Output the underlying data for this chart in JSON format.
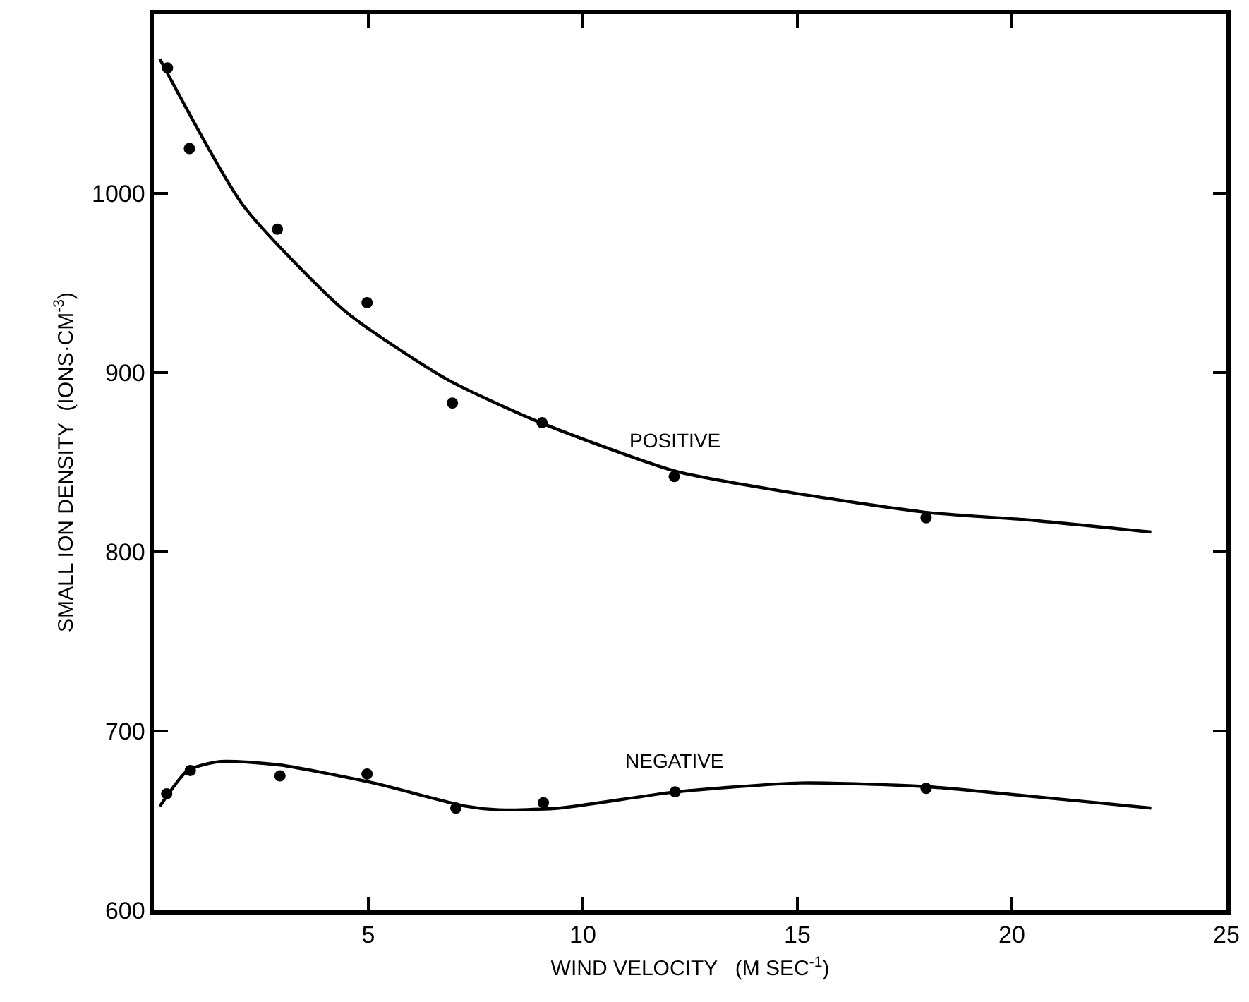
{
  "chart_data": {
    "type": "scatter",
    "xlabel": "WIND VELOCITY   (M SEC$^{-1}$)",
    "ylabel": "SMALL ION DENSITY  (IONS·CM$^{-3}$)",
    "xlim": [
      0,
      25
    ],
    "xticks": [
      5,
      10,
      15,
      20,
      25
    ],
    "ylim": [
      600,
      1100
    ],
    "yticks": [
      600,
      700,
      800,
      900,
      1000
    ],
    "grid": false,
    "marker": "circle",
    "series": [
      {
        "color": "#000000",
        "x": [
          0.32,
          0.83,
          2.88,
          4.97,
          6.96,
          9.05,
          12.13,
          18.0
        ],
        "values": [
          1070,
          1025,
          980,
          939,
          883,
          872,
          842,
          819
        ]
      },
      {
        "color": "#000000",
        "x": [
          0.3,
          0.85,
          2.94,
          4.97,
          7.04,
          9.08,
          12.15,
          18.0
        ],
        "values": [
          665,
          678,
          675,
          676,
          657,
          660,
          666,
          668
        ]
      },
      {
        "type": "line",
        "name": "POSITIVE",
        "color": "#000000",
        "line_style": "solid",
        "marker": "none",
        "x": [
          0.14,
          2.09,
          4.47,
          6.85,
          9.02,
          12.15,
          14.86,
          18.0,
          20.27,
          23.25
        ],
        "values": [
          1075,
          993,
          934,
          896,
          872,
          845,
          833,
          822,
          818,
          811
        ]
      },
      {
        "type": "line",
        "name": "NEGATIVE",
        "color": "#000000",
        "line_style": "solid",
        "marker": "none",
        "x": [
          0.14,
          0.79,
          1.55,
          2.95,
          5.12,
          7.28,
          8.04,
          9.45,
          12.15,
          15.07,
          18.0,
          20.27,
          23.25
        ],
        "values": [
          658,
          678,
          683,
          681,
          671,
          658,
          656,
          657,
          666,
          671,
          669,
          664,
          657
        ]
      }
    ]
  }
}
